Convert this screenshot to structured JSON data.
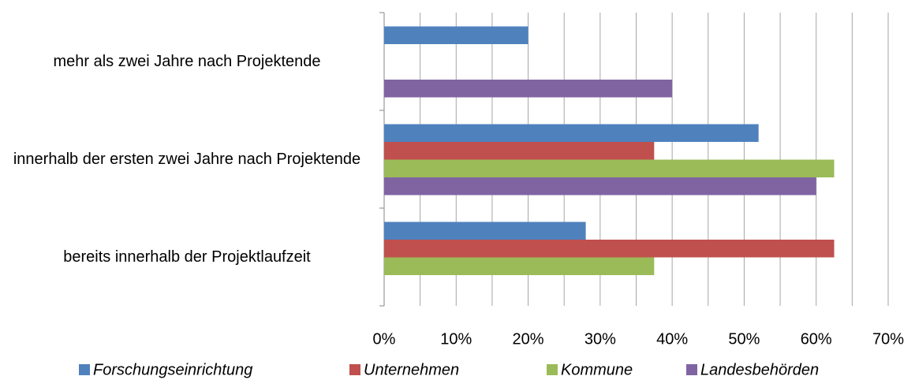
{
  "chart_data": {
    "type": "hbar",
    "categories": [
      "mehr als zwei Jahre nach Projektende",
      "innerhalb der ersten zwei Jahre nach Projektende",
      "bereits innerhalb der Projektlaufzeit"
    ],
    "series": [
      {
        "name": "Forschungseinrichtung",
        "color": "#4f81bd",
        "values": [
          20,
          52,
          28
        ]
      },
      {
        "name": "Unternehmen",
        "color": "#c0504d",
        "values": [
          0,
          37.5,
          62.5
        ]
      },
      {
        "name": "Kommune",
        "color": "#9bbb59",
        "values": [
          0,
          62.5,
          37.5
        ]
      },
      {
        "name": "Landesbehörden",
        "color": "#8064a2",
        "values": [
          40,
          60,
          0
        ]
      }
    ],
    "xlim": [
      0,
      70
    ],
    "xticks": [
      {
        "value": 0,
        "label": "0%"
      },
      {
        "value": 10,
        "label": "10%"
      },
      {
        "value": 20,
        "label": "20%"
      },
      {
        "value": 30,
        "label": "30%"
      },
      {
        "value": 40,
        "label": "40%"
      },
      {
        "value": 50,
        "label": "50%"
      },
      {
        "value": 60,
        "label": "60%"
      },
      {
        "value": 70,
        "label": "70%"
      }
    ],
    "xgrid": [
      5,
      10,
      15,
      20,
      25,
      30,
      35,
      40,
      45,
      50,
      55,
      60,
      65,
      70
    ],
    "grid": true,
    "legend": "bottom"
  }
}
